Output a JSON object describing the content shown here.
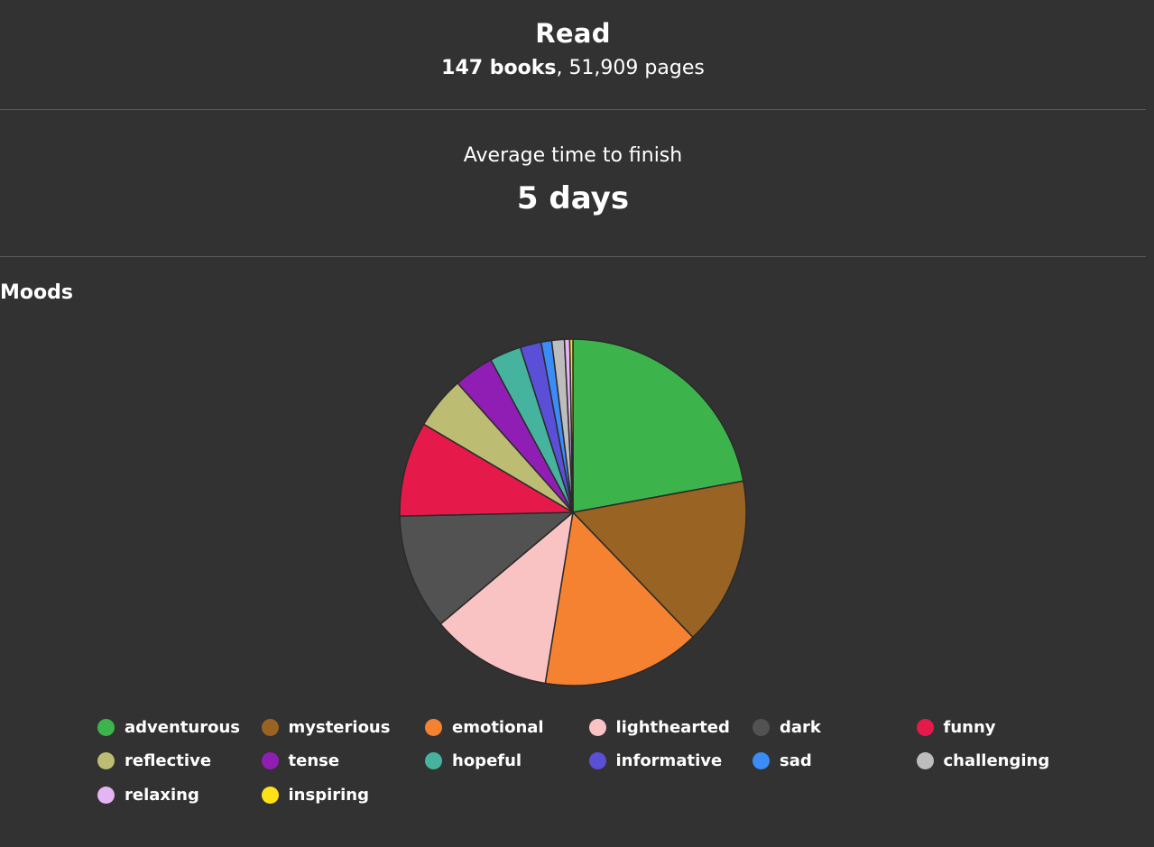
{
  "read": {
    "title": "Read",
    "books": "147 books",
    "pages": ", 51,909 pages"
  },
  "average": {
    "label": "Average time to finish",
    "value": "5 days"
  },
  "chart_data": {
    "type": "pie",
    "title": "Moods",
    "legend_position": "bottom",
    "categories": [
      "adventurous",
      "mysterious",
      "emotional",
      "lighthearted",
      "dark",
      "funny",
      "reflective",
      "tense",
      "hopeful",
      "informative",
      "sad",
      "challenging",
      "relaxing",
      "inspiring"
    ],
    "values": [
      22.5,
      16.0,
      15.0,
      11.5,
      11.0,
      9.0,
      5.0,
      3.8,
      3.0,
      2.0,
      1.0,
      1.2,
      0.5,
      0.3
    ],
    "colors": [
      "#3cb44b",
      "#996324",
      "#f58231",
      "#f9c3c3",
      "#525252",
      "#e6194b",
      "#bcbc72",
      "#911eb4",
      "#46b39e",
      "#5a4fd6",
      "#3b8cf7",
      "#bdbdbd",
      "#e5b4f4",
      "#ffe119"
    ]
  }
}
